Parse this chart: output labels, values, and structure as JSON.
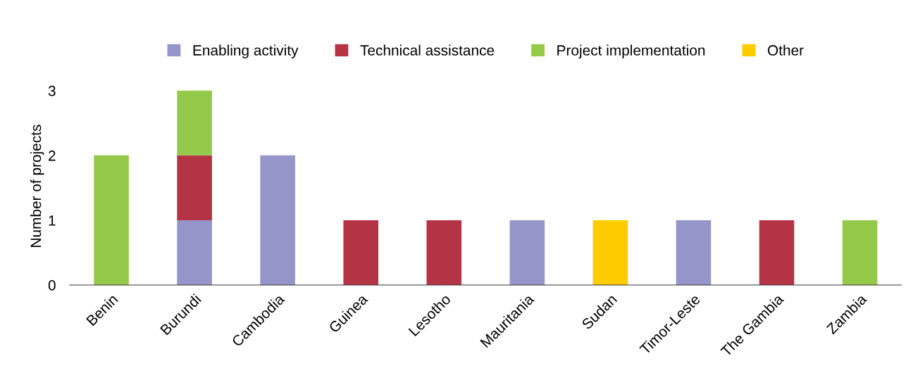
{
  "chart_data": {
    "type": "bar",
    "stacked": true,
    "ylabel": "Number of projects",
    "categories": [
      "Benin",
      "Burundi",
      "Cambodia",
      "Guinea",
      "Lesotho",
      "Mauritania",
      "Sudan",
      "Timor-Leste",
      "The Gambia",
      "Zambia"
    ],
    "series": [
      {
        "name": "Enabling activity",
        "color": "#9595c9",
        "values": [
          0,
          1,
          2,
          0,
          0,
          1,
          0,
          1,
          0,
          0
        ]
      },
      {
        "name": "Technical assistance",
        "color": "#b43446",
        "values": [
          0,
          1,
          0,
          1,
          1,
          0,
          0,
          0,
          1,
          0
        ]
      },
      {
        "name": "Project implementation",
        "color": "#94c94a",
        "values": [
          2,
          1,
          0,
          0,
          0,
          0,
          0,
          0,
          0,
          1
        ]
      },
      {
        "name": "Other",
        "color": "#ffcc00",
        "values": [
          0,
          0,
          0,
          0,
          0,
          0,
          1,
          0,
          0,
          0
        ]
      }
    ],
    "ylim": [
      0,
      3.05
    ],
    "yticks": [
      0,
      1,
      2,
      3
    ],
    "grid": false,
    "legend": "top"
  }
}
